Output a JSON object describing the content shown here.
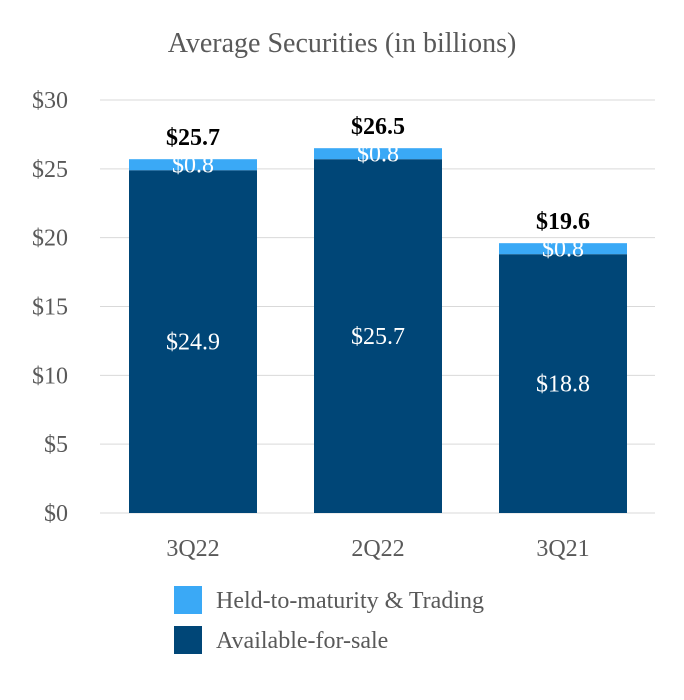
{
  "chart_data": {
    "type": "bar",
    "stacked": true,
    "title": "Average Securities (in billions)",
    "categories": [
      "3Q22",
      "2Q22",
      "3Q21"
    ],
    "series": [
      {
        "name": "Available-for-sale",
        "color": "#004677",
        "values": [
          24.9,
          25.7,
          18.8
        ],
        "labels": [
          "$24.9",
          "$25.7",
          "$18.8"
        ]
      },
      {
        "name": "Held-to-maturity & Trading",
        "color": "#3aa9f6",
        "values": [
          0.8,
          0.8,
          0.8
        ],
        "labels": [
          "$0.8",
          "$0.8",
          "$0.8"
        ]
      }
    ],
    "totals": [
      25.7,
      26.5,
      19.6
    ],
    "total_labels": [
      "$25.7",
      "$26.5",
      "$19.6"
    ],
    "ylim": [
      0,
      30
    ],
    "yticks": [
      0,
      5,
      10,
      15,
      20,
      25,
      30
    ],
    "ytick_labels": [
      "$0",
      "$5",
      "$10",
      "$15",
      "$20",
      "$25",
      "$30"
    ],
    "grid": true,
    "legend_position": "bottom",
    "legend_order": [
      "Held-to-maturity & Trading",
      "Available-for-sale"
    ]
  }
}
